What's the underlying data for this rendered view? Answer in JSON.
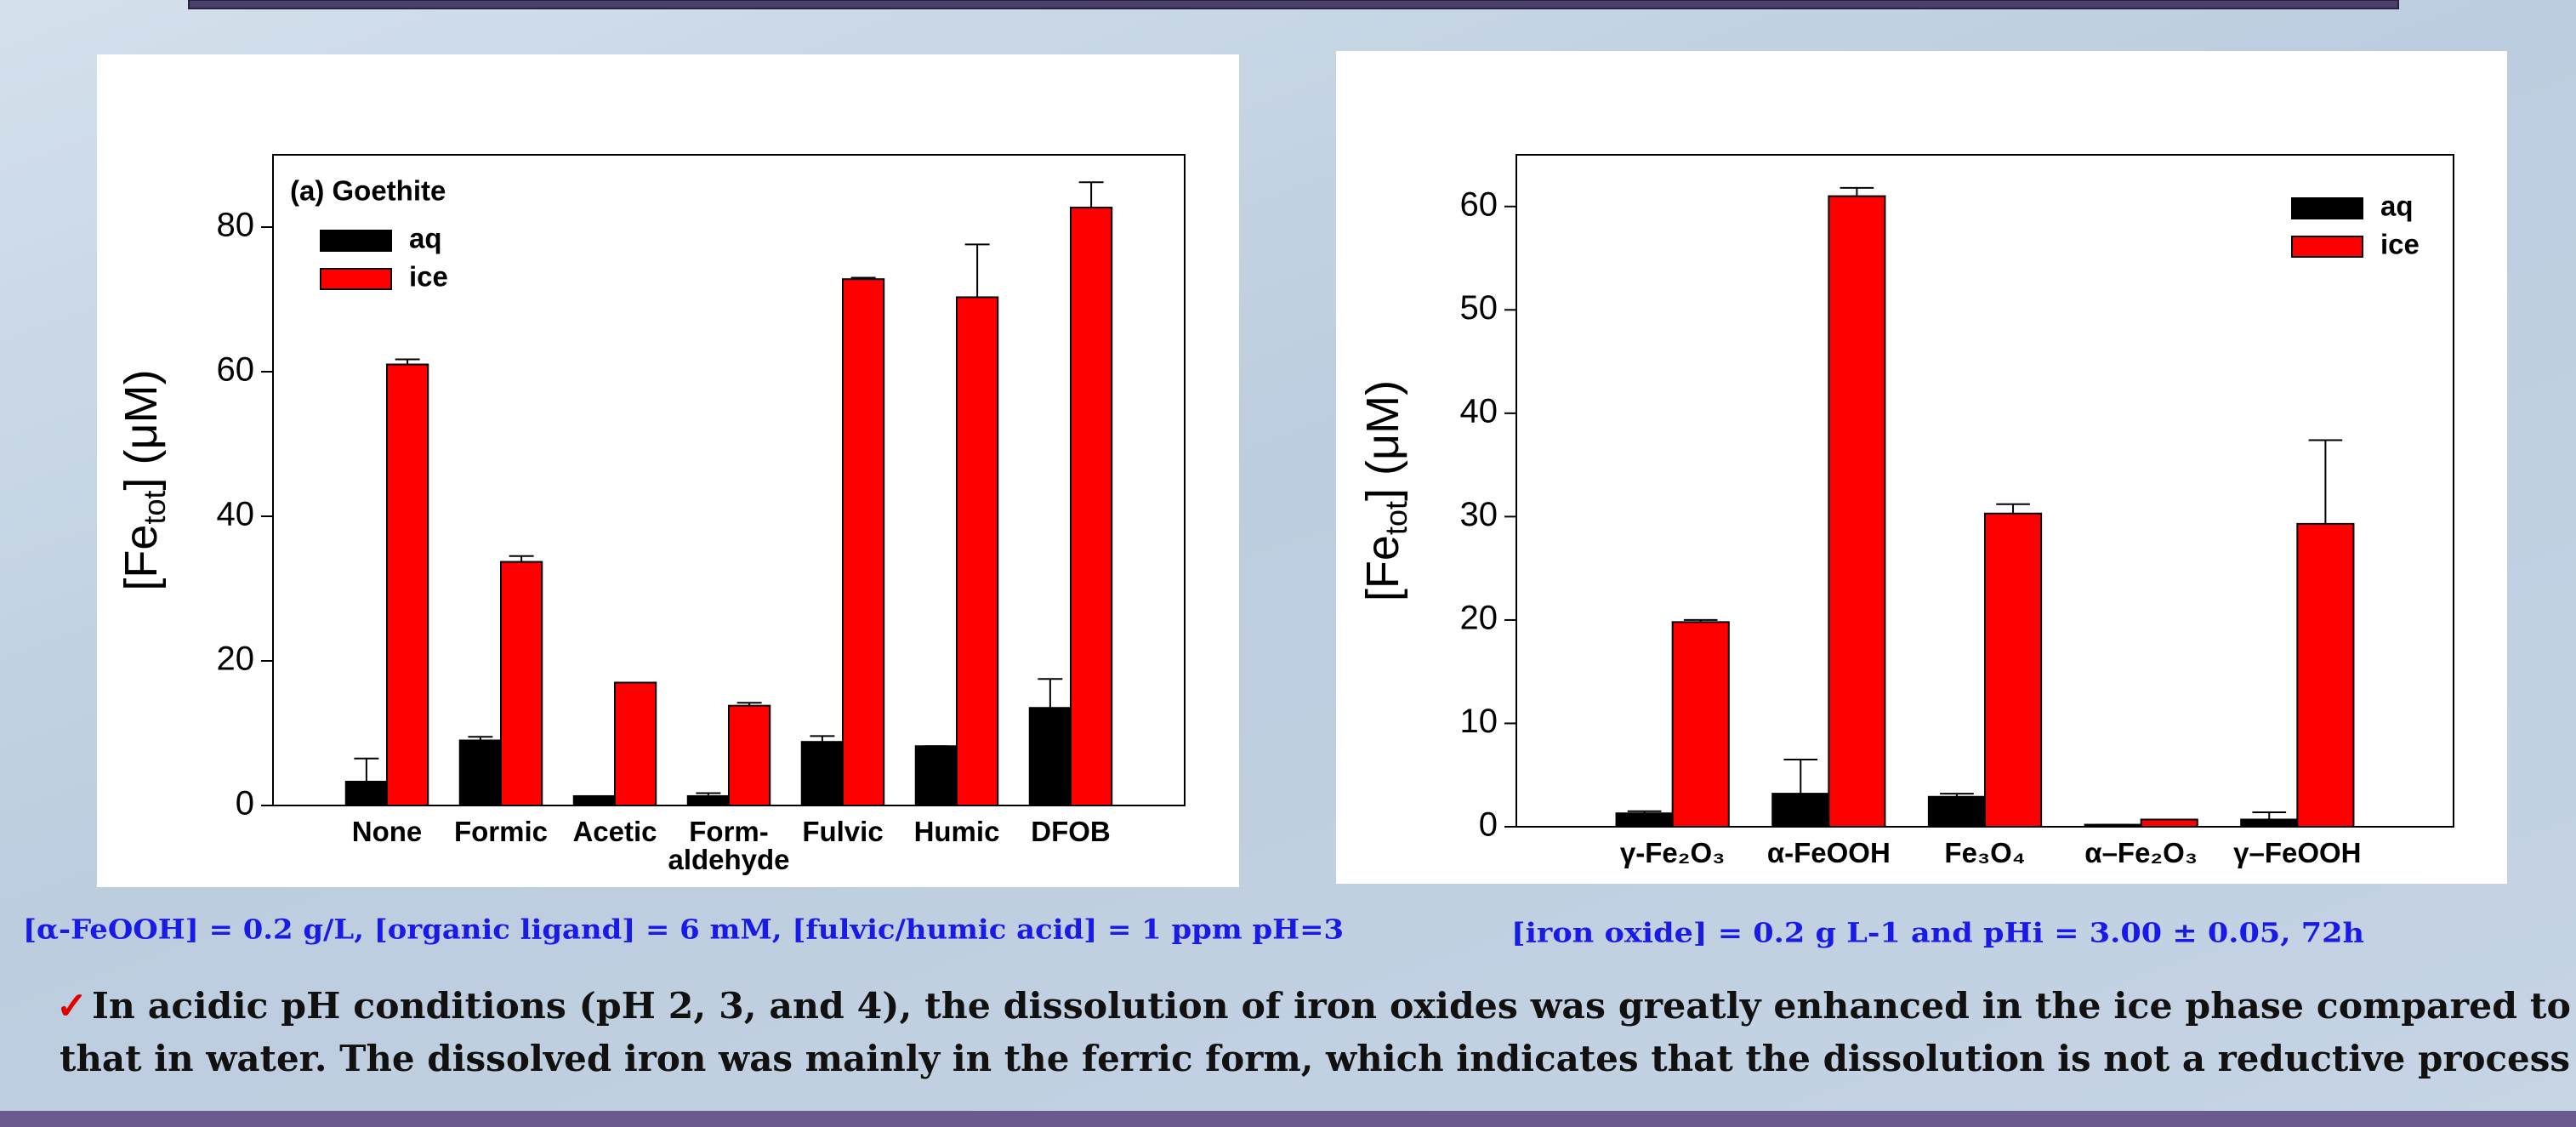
{
  "chart_data": [
    {
      "type": "bar",
      "annotation": "(a) Goethite",
      "ylabel": {
        "main": "[Fe",
        "sub": "tot",
        "rest": "] (μM)"
      },
      "categories": [
        "None",
        "Formic",
        "Acetic",
        "Form-\naldehyde",
        "Fulvic",
        "Humic",
        "DFOB"
      ],
      "series": [
        {
          "name": "aq",
          "color": "#000000",
          "values": [
            3.3,
            9,
            1.3,
            1.3,
            8.8,
            8.2,
            13.5
          ],
          "errors": [
            3.2,
            0.5,
            0,
            0.4,
            0.8,
            0,
            4
          ]
        },
        {
          "name": "ice",
          "color": "#ff0000",
          "values": [
            61,
            33.7,
            17,
            13.8,
            72.8,
            70.3,
            82.7
          ],
          "errors": [
            0.7,
            0.8,
            0,
            0.4,
            0.2,
            7.3,
            3.5
          ]
        }
      ],
      "ylim": [
        0,
        90
      ],
      "yticks": [
        0,
        20,
        40,
        60,
        80
      ],
      "legend": "upper left"
    },
    {
      "type": "bar",
      "ylabel": {
        "main": "[Fe",
        "sub": "tot",
        "rest": "] (μM)"
      },
      "categories": [
        "γ-Fe₂O₃",
        "α-FeOOH",
        "Fe₃O₄",
        "α–Fe₂O₃",
        "γ–FeOOH"
      ],
      "series": [
        {
          "name": "aq",
          "color": "#000000",
          "values": [
            1.3,
            3.2,
            2.9,
            0.2,
            0.7
          ],
          "errors": [
            0.2,
            3.3,
            0.3,
            0,
            0.7
          ]
        },
        {
          "name": "ice",
          "color": "#ff0000",
          "values": [
            19.8,
            61,
            30.3,
            0.7,
            29.3
          ],
          "errors": [
            0.2,
            0.8,
            0.9,
            0,
            8.1
          ]
        }
      ],
      "ylim": [
        0,
        65
      ],
      "yticks": [
        0,
        10,
        20,
        30,
        40,
        50,
        60
      ],
      "legend": "upper right"
    }
  ],
  "captions": [
    "[α-FeOOH] = 0.2 g/L, [organic ligand] = 6 mM, [fulvic/humic acid] = 1 ppm pH=3",
    "[iron oxide] = 0.2 g L-1 and pHi  = 3.00 ± 0.05, 72h"
  ],
  "bullet_mark": "✓",
  "bullet": [
    "In acidic pH conditions (pH 2, 3, and 4), the dissolution of iron oxides was greatly enhanced in the ice phase compared to",
    "that in water. The dissolved iron was mainly in the ferric form, which indicates that the dissolution is not a reductive process"
  ]
}
